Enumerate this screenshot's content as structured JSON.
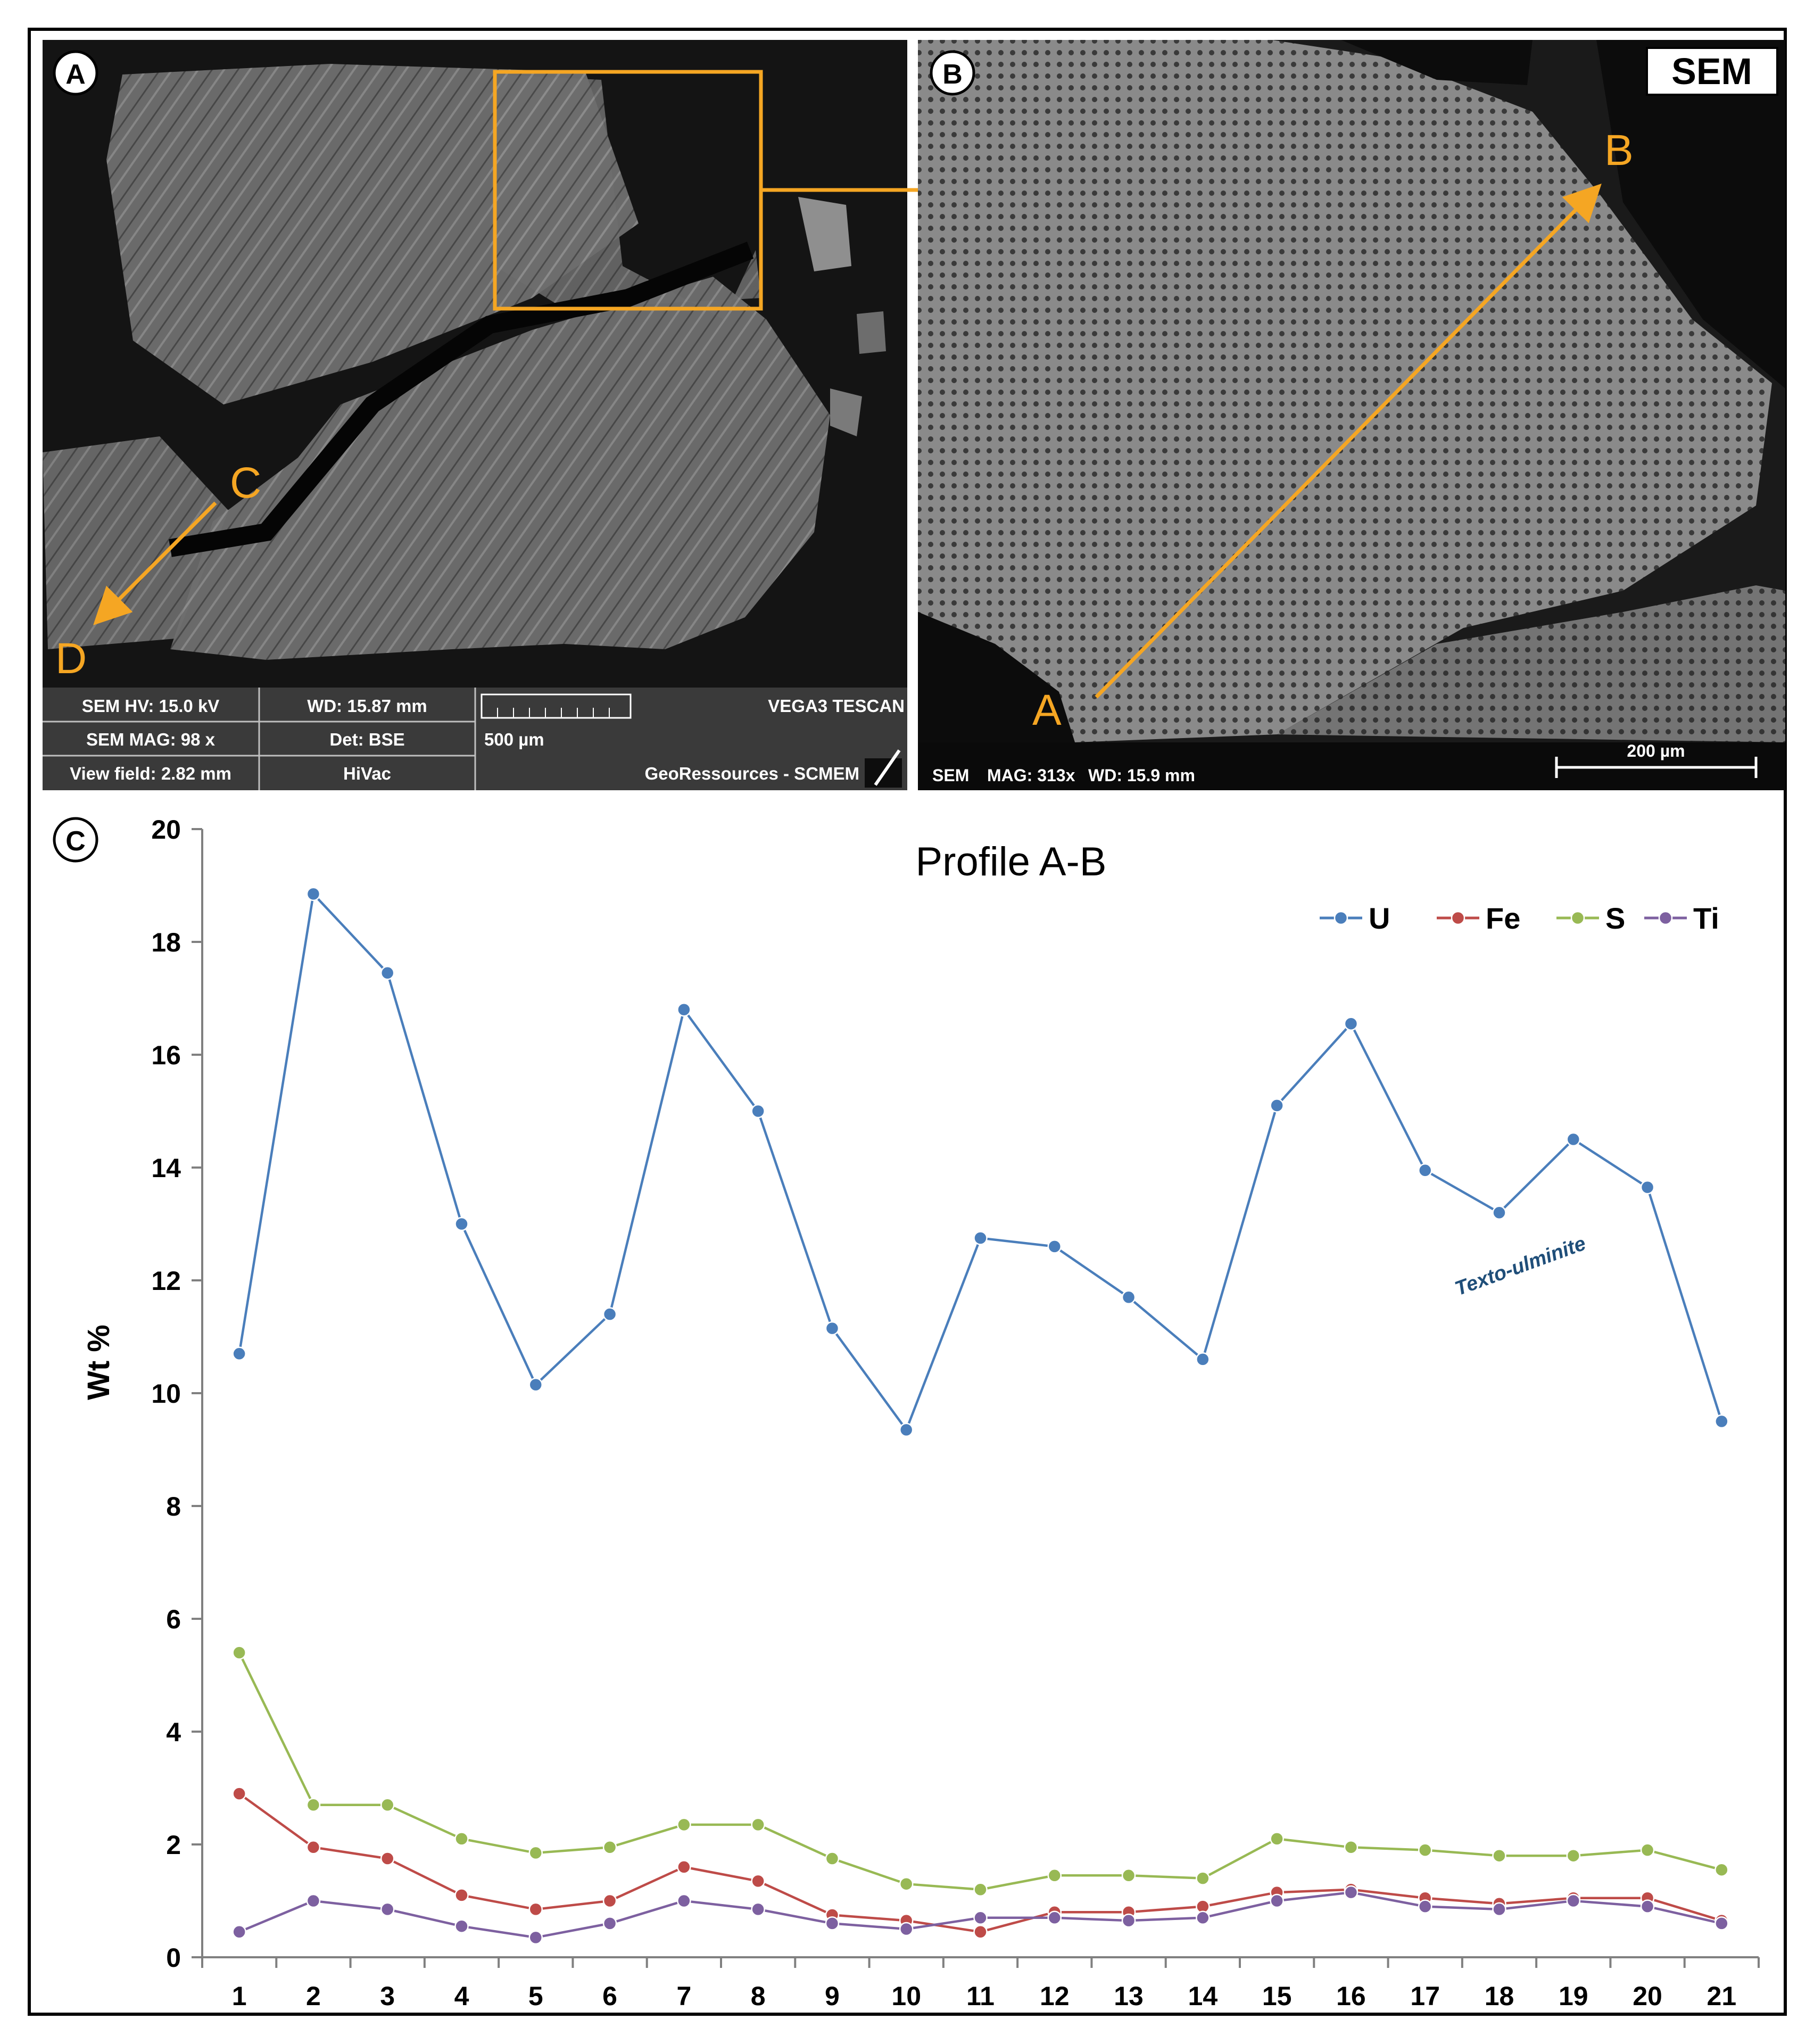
{
  "panel_a": {
    "label": "A",
    "annotations": {
      "c": "C",
      "d": "D"
    },
    "info_bar": {
      "hv": "SEM HV: 15.0 kV",
      "wd": "WD: 15.87 mm",
      "vendor": "VEGA3 TESCAN",
      "mag": "SEM MAG: 98 x",
      "det": "Det: BSE",
      "scale": "500 µm",
      "view_field": "View field: 2.82 mm",
      "vac": "HiVac",
      "lab": "GeoRessources - SCMEM"
    }
  },
  "panel_b": {
    "label": "B",
    "badge": "SEM",
    "point_a": "A",
    "point_b": "B",
    "info_bar": {
      "sem": "SEM",
      "mag": "MAG: 313x",
      "wd": "WD: 15.9 mm",
      "scale": "200 µm"
    }
  },
  "panel_c": {
    "label": "C",
    "annotation": "Texto-ulminite"
  },
  "colors": {
    "U": "#4A7EBB",
    "Fe": "#BE4B48",
    "S": "#98B954",
    "Ti": "#7D60A0",
    "accent": "#F5A623",
    "annotation": "#1F4E79"
  },
  "chart_data": {
    "type": "line",
    "title": "Profile A-B",
    "xlabel": "",
    "ylabel": "Wt %",
    "categories": [
      "1",
      "2",
      "3",
      "4",
      "5",
      "6",
      "7",
      "8",
      "9",
      "10",
      "11",
      "12",
      "13",
      "14",
      "15",
      "16",
      "17",
      "18",
      "19",
      "20",
      "21"
    ],
    "ylim": [
      0,
      20
    ],
    "yticks": [
      0,
      2,
      4,
      6,
      8,
      10,
      12,
      14,
      16,
      18,
      20
    ],
    "legend_position": "top-right",
    "grid": false,
    "series": [
      {
        "name": "U",
        "values": [
          10.7,
          18.85,
          17.45,
          13.0,
          10.15,
          11.4,
          16.8,
          15.0,
          11.15,
          9.35,
          12.75,
          12.6,
          11.7,
          10.6,
          15.1,
          16.55,
          13.95,
          13.2,
          14.5,
          13.65,
          9.5
        ]
      },
      {
        "name": "Fe",
        "values": [
          2.9,
          1.95,
          1.75,
          1.1,
          0.85,
          1.0,
          1.6,
          1.35,
          0.75,
          0.65,
          0.45,
          0.8,
          0.8,
          0.9,
          1.15,
          1.2,
          1.05,
          0.95,
          1.05,
          1.05,
          0.65
        ]
      },
      {
        "name": "S",
        "values": [
          5.4,
          2.7,
          2.7,
          2.1,
          1.85,
          1.95,
          2.35,
          2.35,
          1.75,
          1.3,
          1.2,
          1.45,
          1.45,
          1.4,
          2.1,
          1.95,
          1.9,
          1.8,
          1.8,
          1.9,
          1.55
        ]
      },
      {
        "name": "Ti",
        "values": [
          0.45,
          1.0,
          0.85,
          0.55,
          0.35,
          0.6,
          1.0,
          0.85,
          0.6,
          0.5,
          0.7,
          0.7,
          0.65,
          0.7,
          1.0,
          1.15,
          0.9,
          0.85,
          1.0,
          0.9,
          0.6
        ]
      }
    ]
  }
}
